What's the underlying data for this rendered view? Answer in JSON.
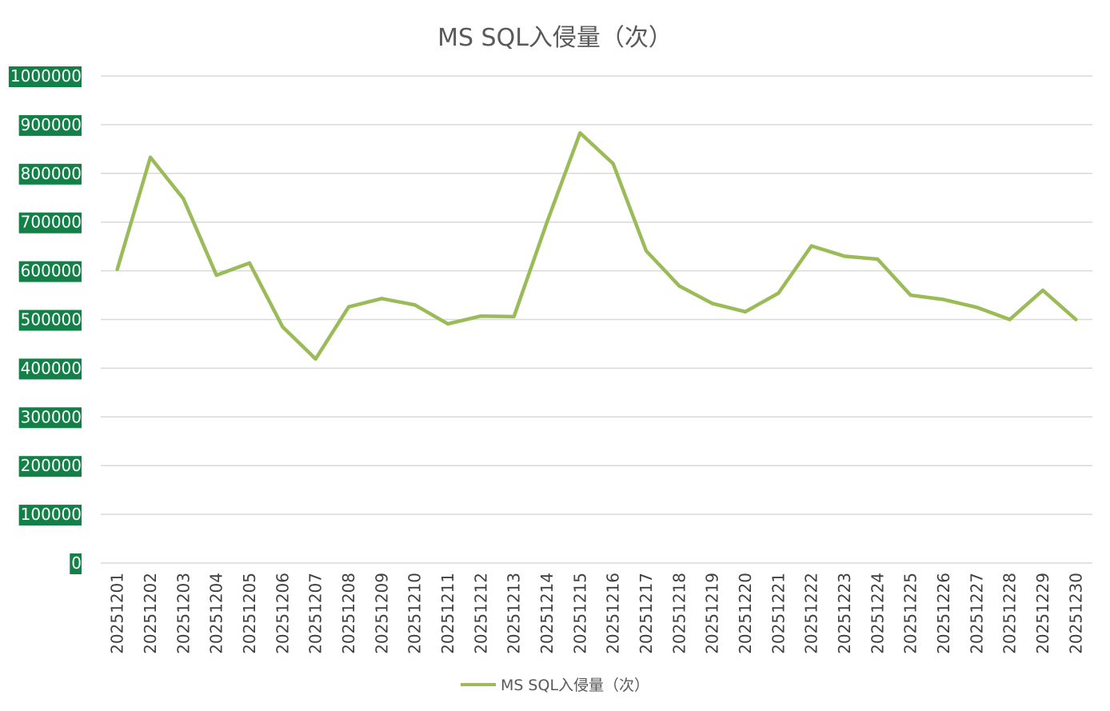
{
  "chart_data": {
    "type": "line",
    "title": "MS SQL入侵量（次）",
    "categories": [
      "20251201",
      "20251202",
      "20251203",
      "20251204",
      "20251205",
      "20251206",
      "20251207",
      "20251208",
      "20251209",
      "20251210",
      "20251211",
      "20251212",
      "20251213",
      "20251214",
      "20251215",
      "20251216",
      "20251217",
      "20251218",
      "20251219",
      "20251220",
      "20251221",
      "20251222",
      "20251223",
      "20251224",
      "20251225",
      "20251226",
      "20251227",
      "20251228",
      "20251229",
      "20251230"
    ],
    "series": [
      {
        "name": "MS SQL入侵量（次）",
        "color": "#9bbb59",
        "values": [
          603000,
          833000,
          748000,
          591000,
          616000,
          485000,
          419000,
          526000,
          543000,
          530000,
          491000,
          507000,
          506000,
          700000,
          883000,
          820000,
          641000,
          569000,
          533000,
          516000,
          554000,
          651000,
          630000,
          624000,
          550000,
          541000,
          525000,
          500000,
          560000,
          500000
        ]
      }
    ],
    "yticks": [
      "0",
      "100000",
      "200000",
      "300000",
      "400000",
      "500000",
      "600000",
      "700000",
      "800000",
      "900000",
      "1000000"
    ],
    "ylim": [
      0,
      1000000
    ],
    "grid": true,
    "legend_position": "bottom",
    "ytick_label_background": "#138048"
  }
}
